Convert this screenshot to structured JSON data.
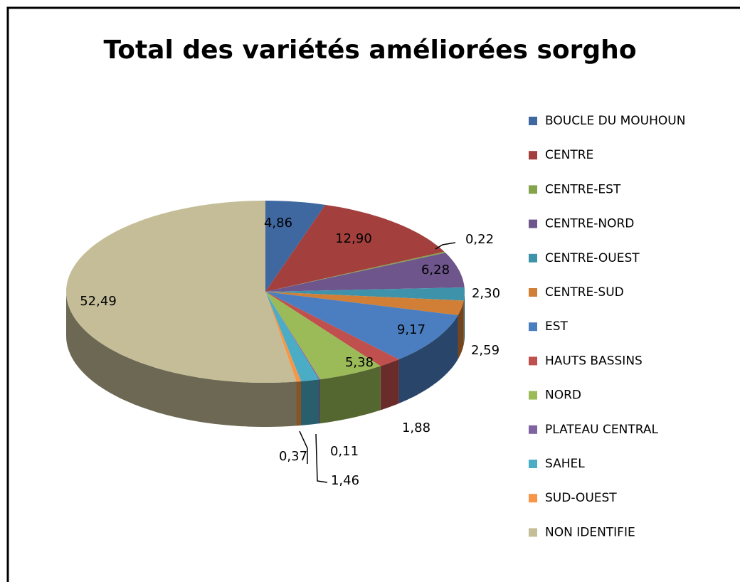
{
  "chart_data": {
    "type": "pie3d",
    "title": "Total des variétés améliorées sorgho",
    "categories": [
      "BOUCLE DU MOUHOUN",
      "CENTRE",
      "CENTRE-EST",
      "CENTRE-NORD",
      "CENTRE-OUEST",
      "CENTRE-SUD",
      "EST",
      "HAUTS BASSINS",
      "NORD",
      "PLATEAU CENTRAL",
      "SAHEL",
      "SUD-OUEST",
      "NON IDENTIFIE"
    ],
    "values": [
      4.86,
      12.9,
      0.22,
      6.28,
      2.3,
      2.59,
      9.17,
      1.88,
      5.38,
      0.11,
      1.46,
      0.37,
      52.49
    ],
    "value_labels": [
      "4,86",
      "12,90",
      "0,22",
      "6,28",
      "2,30",
      "2,59",
      "9,17",
      "1,88",
      "5,38",
      "0,11",
      "1,46",
      "0,37",
      "52,49"
    ],
    "colors": [
      "#3F68A0",
      "#A3403D",
      "#85A34A",
      "#6E558C",
      "#3E93AA",
      "#D17E36",
      "#4A7EC0",
      "#C0504D",
      "#9BBB59",
      "#8064A2",
      "#4BACC6",
      "#F79646",
      "#C4BD97"
    ],
    "legend": "right"
  }
}
